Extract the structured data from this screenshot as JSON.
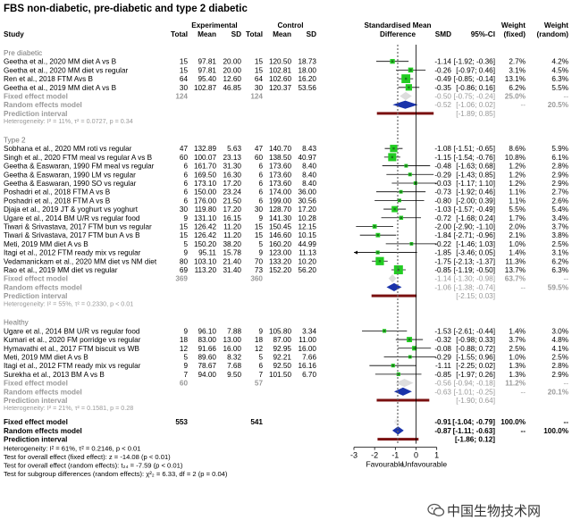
{
  "chart_data": {
    "type": "forest",
    "title": "FBS non-diabetic, pre-diabetic and type 2 diabetic",
    "headers": {
      "study": "Study",
      "experimental": "Experimental",
      "control": "Control",
      "total": "Total",
      "mean": "Mean",
      "sd": "SD",
      "smd_title": "Standardised Mean",
      "smd_title2": "Difference",
      "smd": "SMD",
      "ci": "95%-CI",
      "weight_fixed_1": "Weight",
      "weight_fixed_2": "(fixed)",
      "weight_random_1": "Weight",
      "weight_random_2": "(random)"
    },
    "x_axis": {
      "range": [
        -3,
        1
      ],
      "ticks": [
        "-3",
        "-2",
        "-1",
        "0",
        "1"
      ],
      "label_left": "Favourable",
      "label_right": "Unfavourable"
    },
    "subgroups": [
      {
        "name": "Pre diabetic",
        "studies": [
          {
            "study": "Geetha et al., 2020 MM diet A vs B",
            "e_total": "15",
            "e_mean": "97.81",
            "e_sd": "20.00",
            "c_total": "15",
            "c_mean": "120.50",
            "c_sd": "18.73",
            "smd": -1.14,
            "lo": -1.92,
            "hi": -0.36,
            "smd_txt": "-1.14",
            "ci_txt": "[-1.92; -0.36]",
            "w_fixed": "2.7%",
            "w_random": "4.2%",
            "wf": 2.7
          },
          {
            "study": "Geetha et al., 2020 MM diet vs regular",
            "e_total": "15",
            "e_mean": "97.81",
            "e_sd": "20.00",
            "c_total": "15",
            "c_mean": "102.81",
            "c_sd": "18.00",
            "smd": -0.26,
            "lo": -0.97,
            "hi": 0.46,
            "smd_txt": "-0.26",
            "ci_txt": "[-0.97; 0.46]",
            "w_fixed": "3.1%",
            "w_random": "4.5%",
            "wf": 3.1
          },
          {
            "study": "Ren et al., 2018 FTM Avs B",
            "e_total": "64",
            "e_mean": "95.40",
            "e_sd": "12.60",
            "c_total": "64",
            "c_mean": "102.60",
            "c_sd": "16.20",
            "smd": -0.49,
            "lo": -0.85,
            "hi": -0.14,
            "smd_txt": "-0.49",
            "ci_txt": "[-0.85; -0.14]",
            "w_fixed": "13.1%",
            "w_random": "6.3%",
            "wf": 13.1
          },
          {
            "study": "Geetha et al., 2019 MM diet A vs B",
            "e_total": "30",
            "e_mean": "102.87",
            "e_sd": "46.85",
            "c_total": "30",
            "c_mean": "120.37",
            "c_sd": "53.56",
            "smd": -0.35,
            "lo": -0.86,
            "hi": 0.16,
            "smd_txt": "-0.35",
            "ci_txt": "[-0.86; 0.16]",
            "w_fixed": "6.2%",
            "w_random": "5.5%",
            "wf": 6.2
          }
        ],
        "fixed": {
          "label": "Fixed effect model",
          "e_total": "124",
          "c_total": "124",
          "smd": -0.5,
          "lo": -0.75,
          "hi": -0.24,
          "smd_txt": "-0.50",
          "ci_txt": "[-0.75; -0.24]",
          "w_fixed": "25.0%",
          "w_random": "--"
        },
        "random": {
          "label": "Random effects model",
          "smd": -0.52,
          "lo": -1.06,
          "hi": 0.02,
          "smd_txt": "-0.52",
          "ci_txt": "[-1.06; 0.02]",
          "w_fixed": "--",
          "w_random": "20.5%"
        },
        "pred": {
          "label": "Prediction interval",
          "lo": -1.89,
          "hi": 0.85,
          "ci_txt": "[-1.89; 0.85]"
        },
        "het": "Heterogeneity: I² = 11%, τ² = 0.0727, p = 0.34"
      },
      {
        "name": "Type 2",
        "studies": [
          {
            "study": "Sobhana et al., 2020 MM roti vs regular",
            "e_total": "47",
            "e_mean": "132.89",
            "e_sd": "5.63",
            "c_total": "47",
            "c_mean": "140.70",
            "c_sd": "8.43",
            "smd": -1.08,
            "lo": -1.51,
            "hi": -0.65,
            "smd_txt": "-1.08",
            "ci_txt": "[-1.51; -0.65]",
            "w_fixed": "8.6%",
            "w_random": "5.9%",
            "wf": 8.6
          },
          {
            "study": "Singh et al., 2020 FTM meal vs regular A vs B",
            "e_total": "60",
            "e_mean": "100.07",
            "e_sd": "23.13",
            "c_total": "60",
            "c_mean": "138.50",
            "c_sd": "40.97",
            "smd": -1.15,
            "lo": -1.54,
            "hi": -0.76,
            "smd_txt": "-1.15",
            "ci_txt": "[-1.54; -0.76]",
            "w_fixed": "10.8%",
            "w_random": "6.1%",
            "wf": 10.8
          },
          {
            "study": "Geetha & Easwaran, 1990 FM meal vs regular",
            "e_total": "6",
            "e_mean": "161.70",
            "e_sd": "31.30",
            "c_total": "6",
            "c_mean": "173.60",
            "c_sd": "8.40",
            "smd": -0.48,
            "lo": -1.63,
            "hi": 0.68,
            "smd_txt": "-0.48",
            "ci_txt": "[-1.63; 0.68]",
            "w_fixed": "1.2%",
            "w_random": "2.8%",
            "wf": 1.2
          },
          {
            "study": "Geetha & Easwaran, 1990 LM vs regular",
            "e_total": "6",
            "e_mean": "169.50",
            "e_sd": "16.30",
            "c_total": "6",
            "c_mean": "173.60",
            "c_sd": "8.40",
            "smd": -0.29,
            "lo": -1.43,
            "hi": 0.85,
            "smd_txt": "-0.29",
            "ci_txt": "[-1.43; 0.85]",
            "w_fixed": "1.2%",
            "w_random": "2.9%",
            "wf": 1.2
          },
          {
            "study": "Geetha & Easwaran, 1990 SO vs regular",
            "e_total": "6",
            "e_mean": "173.10",
            "e_sd": "17.20",
            "c_total": "6",
            "c_mean": "173.60",
            "c_sd": "8.40",
            "smd": -0.03,
            "lo": -1.17,
            "hi": 1.1,
            "smd_txt": "-0.03",
            "ci_txt": "[-1.17; 1.10]",
            "w_fixed": "1.2%",
            "w_random": "2.9%",
            "wf": 1.2
          },
          {
            "study": "Poshadri et al., 2018 FTM A vs B",
            "e_total": "6",
            "e_mean": "150.00",
            "e_sd": "23.24",
            "c_total": "6",
            "c_mean": "174.00",
            "c_sd": "36.00",
            "smd": -0.73,
            "lo": -1.92,
            "hi": 0.46,
            "smd_txt": "-0.73",
            "ci_txt": "[-1.92; 0.46]",
            "w_fixed": "1.1%",
            "w_random": "2.7%",
            "wf": 1.1
          },
          {
            "study": "Poshadri et al., 2018 FTM A vs B",
            "e_total": "6",
            "e_mean": "176.00",
            "e_sd": "21.50",
            "c_total": "6",
            "c_mean": "199.00",
            "c_sd": "30.56",
            "smd": -0.8,
            "lo": -2.0,
            "hi": 0.39,
            "smd_txt": "-0.80",
            "ci_txt": "[-2.00; 0.39]",
            "w_fixed": "1.1%",
            "w_random": "2.6%",
            "wf": 1.1
          },
          {
            "study": "Djaja et al., 2019 JT & yoghurt vs yoghurt",
            "e_total": "30",
            "e_mean": "119.80",
            "e_sd": "17.20",
            "c_total": "30",
            "c_mean": "128.70",
            "c_sd": "17.20",
            "smd": -1.03,
            "lo": -1.57,
            "hi": -0.49,
            "smd_txt": "-1.03",
            "ci_txt": "[-1.57; -0.49]",
            "w_fixed": "5.5%",
            "w_random": "5.4%",
            "wf": 5.5
          },
          {
            "study": "Ugare et al., 2014 BM U/R vs regular food",
            "e_total": "9",
            "e_mean": "131.10",
            "e_sd": "16.15",
            "c_total": "9",
            "c_mean": "141.30",
            "c_sd": "10.28",
            "smd": -0.72,
            "lo": -1.68,
            "hi": 0.24,
            "smd_txt": "-0.72",
            "ci_txt": "[-1.68; 0.24]",
            "w_fixed": "1.7%",
            "w_random": "3.4%",
            "wf": 1.7
          },
          {
            "study": "Tiwari & Srivastava, 2017 FTM bun vs regular",
            "e_total": "15",
            "e_mean": "126.42",
            "e_sd": "11.20",
            "c_total": "15",
            "c_mean": "150.45",
            "c_sd": "12.15",
            "smd": -2.0,
            "lo": -2.9,
            "hi": -1.1,
            "smd_txt": "-2.00",
            "ci_txt": "[-2.90; -1.10]",
            "w_fixed": "2.0%",
            "w_random": "3.7%",
            "wf": 2.0
          },
          {
            "study": "Tiwari & Srivastava, 2017 FTM bun A vs B",
            "e_total": "15",
            "e_mean": "126.42",
            "e_sd": "11.20",
            "c_total": "15",
            "c_mean": "146.60",
            "c_sd": "10.15",
            "smd": -1.84,
            "lo": -2.71,
            "hi": -0.96,
            "smd_txt": "-1.84",
            "ci_txt": "[-2.71; -0.96]",
            "w_fixed": "2.1%",
            "w_random": "3.8%",
            "wf": 2.1
          },
          {
            "study": "Meti, 2019 MM diet A vs B",
            "e_total": "5",
            "e_mean": "150.20",
            "e_sd": "38.20",
            "c_total": "5",
            "c_mean": "160.20",
            "c_sd": "44.99",
            "smd": -0.22,
            "lo": -1.46,
            "hi": 1.03,
            "smd_txt": "-0.22",
            "ci_txt": "[-1.46; 1.03]",
            "w_fixed": "1.0%",
            "w_random": "2.5%",
            "wf": 1.0
          },
          {
            "study": "Itagi et al., 2012 FTM ready mix vs regular",
            "e_total": "9",
            "e_mean": "95.11",
            "e_sd": "15.78",
            "c_total": "9",
            "c_mean": "123.00",
            "c_sd": "11.13",
            "smd": -1.85,
            "lo": -3.46,
            "hi": 0.05,
            "smd_txt": "-1.85",
            "ci_txt": "[-3.46; 0.05]",
            "w_fixed": "1.4%",
            "w_random": "3.1%",
            "wf": 1.4
          },
          {
            "study": "Vedamanickam et al., 2020 MM diet vs NM diet",
            "e_total": "80",
            "e_mean": "103.10",
            "e_sd": "21.40",
            "c_total": "70",
            "c_mean": "133.20",
            "c_sd": "10.20",
            "smd": -1.75,
            "lo": -2.13,
            "hi": -1.37,
            "smd_txt": "-1.75",
            "ci_txt": "[-2.13; -1.37]",
            "w_fixed": "11.3%",
            "w_random": "6.2%",
            "wf": 11.3
          },
          {
            "study": "Rao et al., 2019 MM diet vs regular",
            "e_total": "69",
            "e_mean": "113.20",
            "e_sd": "31.40",
            "c_total": "73",
            "c_mean": "152.20",
            "c_sd": "56.20",
            "smd": -0.85,
            "lo": -1.19,
            "hi": -0.5,
            "smd_txt": "-0.85",
            "ci_txt": "[-1.19; -0.50]",
            "w_fixed": "13.7%",
            "w_random": "6.3%",
            "wf": 13.7
          }
        ],
        "fixed": {
          "label": "Fixed effect model",
          "e_total": "369",
          "c_total": "360",
          "smd": -1.14,
          "lo": -1.3,
          "hi": -0.98,
          "smd_txt": "-1.14",
          "ci_txt": "[-1.30; -0.98]",
          "w_fixed": "63.7%",
          "w_random": "--"
        },
        "random": {
          "label": "Random effects model",
          "smd": -1.06,
          "lo": -1.38,
          "hi": -0.74,
          "smd_txt": "-1.06",
          "ci_txt": "[-1.38; -0.74]",
          "w_fixed": "--",
          "w_random": "59.5%"
        },
        "pred": {
          "label": "Prediction interval",
          "lo": -2.15,
          "hi": 0.03,
          "ci_txt": "[-2.15; 0.03]"
        },
        "het": "Heterogeneity: I² = 55%, τ² = 0.2330, p < 0.01"
      },
      {
        "name": "Healthy",
        "studies": [
          {
            "study": "Ugare et al., 2014 BM U/R vs regular food",
            "e_total": "9",
            "e_mean": "96.10",
            "e_sd": "7.88",
            "c_total": "9",
            "c_mean": "105.80",
            "c_sd": "3.34",
            "smd": -1.53,
            "lo": -2.61,
            "hi": -0.44,
            "smd_txt": "-1.53",
            "ci_txt": "[-2.61; -0.44]",
            "w_fixed": "1.4%",
            "w_random": "3.0%",
            "wf": 1.4
          },
          {
            "study": "Kumari et al., 2020 FM porridge vs regular",
            "e_total": "18",
            "e_mean": "83.00",
            "e_sd": "13.00",
            "c_total": "18",
            "c_mean": "87.00",
            "c_sd": "11.00",
            "smd": -0.32,
            "lo": -0.98,
            "hi": 0.33,
            "smd_txt": "-0.32",
            "ci_txt": "[-0.98; 0.33]",
            "w_fixed": "3.7%",
            "w_random": "4.8%",
            "wf": 3.7
          },
          {
            "study": "Hymavathi et al., 2017 FTM biscuit vs WB",
            "e_total": "12",
            "e_mean": "91.66",
            "e_sd": "16.00",
            "c_total": "12",
            "c_mean": "92.95",
            "c_sd": "16.00",
            "smd": -0.08,
            "lo": -0.88,
            "hi": 0.72,
            "smd_txt": "-0.08",
            "ci_txt": "[-0.88; 0.72]",
            "w_fixed": "2.5%",
            "w_random": "4.1%",
            "wf": 2.5
          },
          {
            "study": "Meti, 2019 MM diet A vs B",
            "e_total": "5",
            "e_mean": "89.60",
            "e_sd": "8.32",
            "c_total": "5",
            "c_mean": "92.21",
            "c_sd": "7.66",
            "smd": -0.29,
            "lo": -1.55,
            "hi": 0.96,
            "smd_txt": "-0.29",
            "ci_txt": "[-1.55; 0.96]",
            "w_fixed": "1.0%",
            "w_random": "2.5%",
            "wf": 1.0
          },
          {
            "study": "Itagi et al., 2012 FTM ready mix vs regular",
            "e_total": "9",
            "e_mean": "78.67",
            "e_sd": "7.68",
            "c_total": "6",
            "c_mean": "92.50",
            "c_sd": "16.16",
            "smd": -1.11,
            "lo": -2.25,
            "hi": 0.02,
            "smd_txt": "-1.11",
            "ci_txt": "[-2.25; 0.02]",
            "w_fixed": "1.3%",
            "w_random": "2.8%",
            "wf": 1.3
          },
          {
            "study": "Surekha et al., 2013 BM A vs B",
            "e_total": "7",
            "e_mean": "94.00",
            "e_sd": "9.50",
            "c_total": "7",
            "c_mean": "101.50",
            "c_sd": "6.70",
            "smd": -0.85,
            "lo": -1.97,
            "hi": 0.26,
            "smd_txt": "-0.85",
            "ci_txt": "[-1.97; 0.26]",
            "w_fixed": "1.3%",
            "w_random": "2.9%",
            "wf": 1.3
          }
        ],
        "fixed": {
          "label": "Fixed effect model",
          "e_total": "60",
          "c_total": "57",
          "smd": -0.56,
          "lo": -0.94,
          "hi": -0.18,
          "smd_txt": "-0.56",
          "ci_txt": "[-0.94; -0.18]",
          "w_fixed": "11.2%",
          "w_random": "--"
        },
        "random": {
          "label": "Random effects model",
          "smd": -0.63,
          "lo": -1.01,
          "hi": -0.25,
          "smd_txt": "-0.63",
          "ci_txt": "[-1.01; -0.25]",
          "w_fixed": "--",
          "w_random": "20.1%"
        },
        "pred": {
          "label": "Prediction interval",
          "lo": -1.9,
          "hi": 0.64,
          "ci_txt": "[-1.90; 0.64]"
        },
        "het": "Heterogeneity: I² = 21%, τ² = 0.1581, p = 0.28"
      }
    ],
    "overall": {
      "fixed": {
        "label": "Fixed effect model",
        "e_total": "553",
        "c_total": "541",
        "smd": -0.91,
        "lo": -1.04,
        "hi": -0.79,
        "smd_txt": "-0.91",
        "ci_txt": "[-1.04; -0.79]",
        "w_fixed": "100.0%",
        "w_random": "--"
      },
      "random": {
        "label": "Random effects model",
        "smd": -0.87,
        "lo": -1.11,
        "hi": -0.63,
        "smd_txt": "-0.87",
        "ci_txt": "[-1.11; -0.63]",
        "w_fixed": "--",
        "w_random": "100.0%"
      },
      "pred": {
        "label": "Prediction interval",
        "lo": -1.86,
        "hi": 0.12,
        "ci_txt": "[-1.86; 0.12]"
      },
      "footer": [
        "Heterogeneity: I² = 61%, τ² = 0.2146, p < 0.01",
        "Test for overall effect (fixed effect): z = -14.08 (p < 0.01)",
        "Test for overall effect (random effects): t₂₄ = -7.59 (p < 0.01)",
        "Test for subgroup differences (random effects): χ²₂ = 6.33, df = 2 (p = 0.04)"
      ]
    },
    "colors": {
      "square": "#22cc22",
      "diamond": "#1a33aa",
      "pred": "#7a1010",
      "gray": "#999999",
      "grid": "#bbbbbb"
    }
  },
  "watermark": {
    "text": "中国生物技术网",
    "icon": "wechat-icon"
  }
}
